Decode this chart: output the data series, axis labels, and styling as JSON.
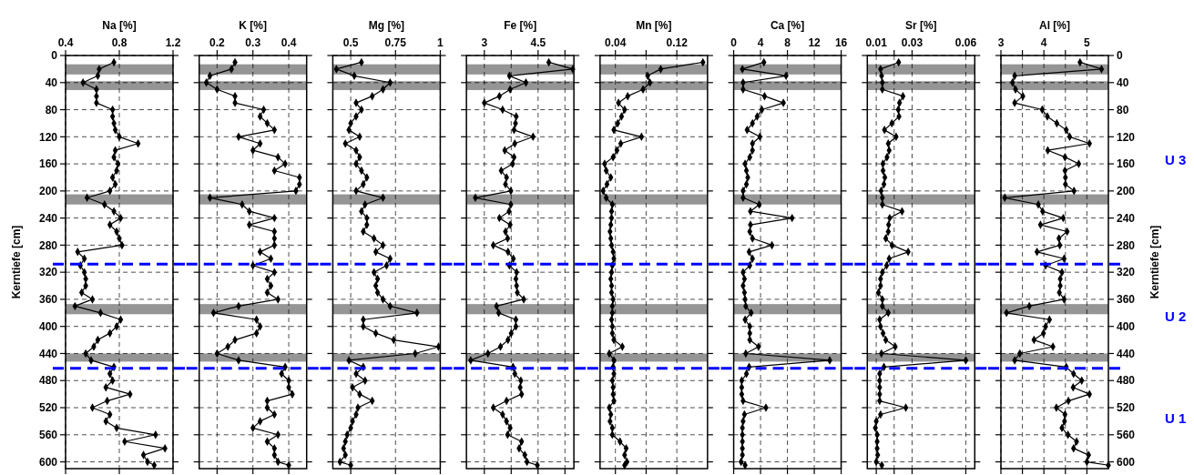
{
  "chart_data": [
    {
      "type": "line",
      "xlabel": "Na [%]",
      "ylabel": "Kerntiefe [cm]",
      "xlim": [
        0.4,
        1.2
      ],
      "xticks": [
        0.4,
        0.8,
        1.2
      ],
      "ylim": [
        610,
        0
      ],
      "yticks": [
        0,
        40,
        80,
        120,
        160,
        200,
        240,
        280,
        320,
        360,
        400,
        440,
        480,
        520,
        560,
        600
      ],
      "grid": true,
      "marker": "diamond",
      "bands": [
        {
          "axis": "y",
          "from": 13,
          "to": 28,
          "color": "#8a8a8a"
        },
        {
          "axis": "y",
          "from": 38,
          "to": 51,
          "color": "#8a8a8a"
        },
        {
          "axis": "y",
          "from": 205,
          "to": 220,
          "color": "#8a8a8a"
        },
        {
          "axis": "y",
          "from": 367,
          "to": 382,
          "color": "#8a8a8a"
        },
        {
          "axis": "y",
          "from": 440,
          "to": 452,
          "color": "#8a8a8a"
        }
      ],
      "ref_lines": [
        {
          "axis": "y",
          "value": 308,
          "color": "#0000ff",
          "line_style": "dashed"
        },
        {
          "axis": "y",
          "value": 462,
          "color": "#0000ff",
          "line_style": "dashed"
        }
      ],
      "series": [
        {
          "color": "#000000",
          "x": [
            0.76,
            0.65,
            0.64,
            0.53,
            0.63,
            0.63,
            0.63,
            0.75,
            0.75,
            0.76,
            0.77,
            0.8,
            0.94,
            0.77,
            0.76,
            0.79,
            0.78,
            0.75,
            0.77,
            0.73,
            0.56,
            0.69,
            0.76,
            0.81,
            0.73,
            0.78,
            0.8,
            0.82,
            0.49,
            0.54,
            0.51,
            0.54,
            0.55,
            0.55,
            0.52,
            0.6,
            0.47,
            0.66,
            0.81,
            0.78,
            0.73,
            0.64,
            0.61,
            0.55,
            0.59,
            0.76,
            0.73,
            0.75,
            0.7,
            0.88,
            0.71,
            0.6,
            0.73,
            0.7,
            0.78,
            1.07,
            0.84,
            1.14,
            0.98,
            1.01,
            1.06
          ],
          "values": [
            10,
            20,
            30,
            40,
            50,
            60,
            70,
            80,
            90,
            100,
            110,
            120,
            130,
            140,
            150,
            160,
            170,
            180,
            190,
            200,
            210,
            220,
            230,
            240,
            250,
            260,
            270,
            280,
            290,
            300,
            310,
            320,
            330,
            340,
            350,
            360,
            370,
            380,
            390,
            400,
            410,
            420,
            430,
            440,
            450,
            460,
            470,
            480,
            490,
            500,
            510,
            520,
            530,
            540,
            550,
            560,
            570,
            580,
            590,
            600,
            605
          ]
        }
      ]
    },
    {
      "type": "line",
      "xlabel": "K [%]",
      "xlim": [
        0.15,
        0.45
      ],
      "xticks": [
        0.2,
        0.3,
        0.4
      ],
      "ylim": [
        610,
        0
      ],
      "yticks": [
        0,
        40,
        80,
        120,
        160,
        200,
        240,
        280,
        320,
        360,
        400,
        440,
        480,
        520,
        560,
        600
      ],
      "grid": true,
      "marker": "diamond",
      "tick_labels": "x",
      "bands": [
        {
          "axis": "y",
          "from": 13,
          "to": 28,
          "color": "#8a8a8a"
        },
        {
          "axis": "y",
          "from": 38,
          "to": 51,
          "color": "#8a8a8a"
        },
        {
          "axis": "y",
          "from": 205,
          "to": 220,
          "color": "#8a8a8a"
        },
        {
          "axis": "y",
          "from": 367,
          "to": 382,
          "color": "#8a8a8a"
        },
        {
          "axis": "y",
          "from": 440,
          "to": 452,
          "color": "#8a8a8a"
        }
      ],
      "ref_lines": [
        {
          "axis": "y",
          "value": 308,
          "color": "#0000ff",
          "line_style": "dashed"
        },
        {
          "axis": "y",
          "value": 462,
          "color": "#0000ff",
          "line_style": "dashed"
        }
      ],
      "series": [
        {
          "color": "#000000",
          "x": [
            0.25,
            0.24,
            0.18,
            0.17,
            0.2,
            0.25,
            0.25,
            0.33,
            0.32,
            0.34,
            0.36,
            0.26,
            0.32,
            0.3,
            0.37,
            0.39,
            0.36,
            0.43,
            0.43,
            0.42,
            0.18,
            0.27,
            0.29,
            0.36,
            0.29,
            0.36,
            0.36,
            0.36,
            0.32,
            0.35,
            0.3,
            0.36,
            0.34,
            0.35,
            0.34,
            0.37,
            0.26,
            0.19,
            0.31,
            0.32,
            0.31,
            0.25,
            0.23,
            0.2,
            0.26,
            0.39,
            0.38,
            0.4,
            0.4,
            0.41,
            0.34,
            0.34,
            0.36,
            0.32,
            0.3,
            0.37,
            0.34,
            0.36,
            0.36,
            0.37,
            0.4
          ],
          "values": [
            10,
            20,
            30,
            40,
            50,
            60,
            70,
            80,
            90,
            100,
            110,
            120,
            130,
            140,
            150,
            160,
            170,
            180,
            190,
            200,
            210,
            220,
            230,
            240,
            250,
            260,
            270,
            280,
            290,
            300,
            310,
            320,
            330,
            340,
            350,
            360,
            370,
            380,
            390,
            400,
            410,
            420,
            430,
            440,
            450,
            460,
            470,
            480,
            490,
            500,
            510,
            520,
            530,
            540,
            550,
            560,
            570,
            580,
            590,
            600,
            605
          ]
        }
      ]
    },
    {
      "type": "line",
      "xlabel": "Mg [%]",
      "xlim": [
        0.4,
        1
      ],
      "xticks": [
        0.5,
        0.75,
        1
      ],
      "ylim": [
        610,
        0
      ],
      "yticks": [
        0,
        40,
        80,
        120,
        160,
        200,
        240,
        280,
        320,
        360,
        400,
        440,
        480,
        520,
        560,
        600
      ],
      "grid": true,
      "marker": "diamond",
      "tick_labels": "x",
      "bands": [
        {
          "axis": "y",
          "from": 13,
          "to": 28,
          "color": "#8a8a8a"
        },
        {
          "axis": "y",
          "from": 38,
          "to": 51,
          "color": "#8a8a8a"
        },
        {
          "axis": "y",
          "from": 205,
          "to": 220,
          "color": "#8a8a8a"
        },
        {
          "axis": "y",
          "from": 367,
          "to": 382,
          "color": "#8a8a8a"
        },
        {
          "axis": "y",
          "from": 440,
          "to": 452,
          "color": "#8a8a8a"
        }
      ],
      "ref_lines": [
        {
          "axis": "y",
          "value": 308,
          "color": "#0000ff",
          "line_style": "dashed"
        },
        {
          "axis": "y",
          "value": 462,
          "color": "#0000ff",
          "line_style": "dashed"
        }
      ],
      "series": [
        {
          "color": "#000000",
          "x": [
            0.56,
            0.42,
            0.52,
            0.72,
            0.68,
            0.62,
            0.53,
            0.56,
            0.53,
            0.5,
            0.49,
            0.55,
            0.47,
            0.53,
            0.55,
            0.53,
            0.56,
            0.59,
            0.57,
            0.53,
            0.68,
            0.58,
            0.56,
            0.59,
            0.59,
            0.57,
            0.63,
            0.68,
            0.64,
            0.72,
            0.7,
            0.63,
            0.65,
            0.64,
            0.65,
            0.68,
            0.72,
            0.87,
            0.57,
            0.57,
            0.64,
            0.74,
            0.99,
            0.86,
            0.49,
            0.57,
            0.53,
            0.58,
            0.51,
            0.55,
            0.62,
            0.54,
            0.53,
            0.51,
            0.5,
            0.48,
            0.47,
            0.46,
            0.47,
            0.44,
            0.5
          ],
          "values": [
            10,
            20,
            30,
            40,
            50,
            60,
            70,
            80,
            90,
            100,
            110,
            120,
            130,
            140,
            150,
            160,
            170,
            180,
            190,
            200,
            210,
            220,
            230,
            240,
            250,
            260,
            270,
            280,
            290,
            300,
            310,
            320,
            330,
            340,
            350,
            360,
            370,
            380,
            390,
            400,
            410,
            420,
            430,
            440,
            450,
            460,
            470,
            480,
            490,
            500,
            510,
            520,
            530,
            540,
            550,
            560,
            570,
            580,
            590,
            600,
            605
          ]
        }
      ]
    },
    {
      "type": "line",
      "xlabel": "Fe [%]",
      "xlim": [
        2.5,
        5.5
      ],
      "xticks": [
        3,
        {
          "value": 3.75,
          "label": null
        },
        4.5,
        {
          "value": 5.25,
          "label": null
        }
      ],
      "ylim": [
        610,
        0
      ],
      "yticks": [
        0,
        40,
        80,
        120,
        160,
        200,
        240,
        280,
        320,
        360,
        400,
        440,
        480,
        520,
        560,
        600
      ],
      "grid": true,
      "marker": "diamond",
      "tick_labels": "x",
      "bands": [
        {
          "axis": "y",
          "from": 13,
          "to": 28,
          "color": "#8a8a8a"
        },
        {
          "axis": "y",
          "from": 38,
          "to": 51,
          "color": "#8a8a8a"
        },
        {
          "axis": "y",
          "from": 205,
          "to": 220,
          "color": "#8a8a8a"
        },
        {
          "axis": "y",
          "from": 367,
          "to": 382,
          "color": "#8a8a8a"
        },
        {
          "axis": "y",
          "from": 440,
          "to": 452,
          "color": "#8a8a8a"
        }
      ],
      "ref_lines": [
        {
          "axis": "y",
          "value": 308,
          "color": "#0000ff",
          "line_style": "dashed"
        },
        {
          "axis": "y",
          "value": 462,
          "color": "#0000ff",
          "line_style": "dashed"
        }
      ],
      "series": [
        {
          "color": "#000000",
          "x": [
            4.8,
            5.47,
            3.7,
            4.16,
            3.72,
            3.42,
            3.0,
            3.51,
            3.89,
            3.87,
            3.83,
            4.36,
            3.85,
            3.57,
            3.83,
            3.79,
            3.47,
            3.62,
            3.59,
            3.74,
            2.75,
            3.74,
            3.69,
            3.42,
            3.72,
            3.59,
            3.65,
            3.25,
            3.66,
            3.81,
            3.7,
            3.9,
            3.88,
            3.9,
            3.92,
            4.1,
            3.34,
            3.4,
            3.88,
            3.88,
            3.75,
            3.66,
            3.45,
            3.1,
            2.62,
            3.8,
            3.85,
            4.02,
            4.0,
            4.04,
            3.62,
            3.25,
            3.51,
            3.62,
            3.72,
            3.65,
            4.04,
            3.97,
            4.13,
            4.19,
            4.48
          ],
          "values": [
            10,
            20,
            30,
            40,
            50,
            60,
            70,
            80,
            90,
            100,
            110,
            120,
            130,
            140,
            150,
            160,
            170,
            180,
            190,
            200,
            210,
            220,
            230,
            240,
            250,
            260,
            270,
            280,
            290,
            300,
            310,
            320,
            330,
            340,
            350,
            360,
            370,
            380,
            390,
            400,
            410,
            420,
            430,
            440,
            450,
            460,
            470,
            480,
            490,
            500,
            510,
            520,
            530,
            540,
            550,
            560,
            570,
            580,
            590,
            600,
            605
          ]
        }
      ]
    },
    {
      "type": "line",
      "xlabel": "Mn [%]",
      "xlim": [
        0.02,
        0.16
      ],
      "xticks": [
        0.04,
        {
          "value": 0.08,
          "label": null
        },
        0.12
      ],
      "ylim": [
        610,
        0
      ],
      "yticks": [
        0,
        40,
        80,
        120,
        160,
        200,
        240,
        280,
        320,
        360,
        400,
        440,
        480,
        520,
        560,
        600
      ],
      "grid": true,
      "marker": "diamond",
      "tick_labels": "x",
      "bands": [
        {
          "axis": "y",
          "from": 13,
          "to": 28,
          "color": "#8a8a8a"
        },
        {
          "axis": "y",
          "from": 38,
          "to": 51,
          "color": "#8a8a8a"
        },
        {
          "axis": "y",
          "from": 205,
          "to": 220,
          "color": "#8a8a8a"
        },
        {
          "axis": "y",
          "from": 367,
          "to": 382,
          "color": "#8a8a8a"
        },
        {
          "axis": "y",
          "from": 440,
          "to": 452,
          "color": "#8a8a8a"
        }
      ],
      "ref_lines": [
        {
          "axis": "y",
          "value": 308,
          "color": "#0000ff",
          "line_style": "dashed"
        },
        {
          "axis": "y",
          "value": 462,
          "color": "#0000ff",
          "line_style": "dashed"
        }
      ],
      "series": [
        {
          "color": "#000000",
          "x": [
            0.154,
            0.099,
            0.082,
            0.085,
            0.076,
            0.056,
            0.044,
            0.052,
            0.048,
            0.043,
            0.038,
            0.074,
            0.047,
            0.042,
            0.037,
            0.026,
            0.028,
            0.034,
            0.029,
            0.024,
            0.028,
            0.036,
            0.035,
            0.035,
            0.034,
            0.033,
            0.034,
            0.035,
            0.037,
            0.038,
            0.036,
            0.035,
            0.034,
            0.035,
            0.035,
            0.037,
            0.036,
            0.036,
            0.035,
            0.036,
            0.036,
            0.038,
            0.049,
            0.032,
            0.038,
            0.037,
            0.038,
            0.036,
            0.037,
            0.037,
            0.038,
            0.032,
            0.034,
            0.033,
            0.036,
            0.036,
            0.046,
            0.054,
            0.052,
            0.055,
            0.052
          ],
          "values": [
            10,
            20,
            30,
            40,
            50,
            60,
            70,
            80,
            90,
            100,
            110,
            120,
            130,
            140,
            150,
            160,
            170,
            180,
            190,
            200,
            210,
            220,
            230,
            240,
            250,
            260,
            270,
            280,
            290,
            300,
            310,
            320,
            330,
            340,
            350,
            360,
            370,
            380,
            390,
            400,
            410,
            420,
            430,
            440,
            450,
            460,
            470,
            480,
            490,
            500,
            510,
            520,
            530,
            540,
            550,
            560,
            570,
            580,
            590,
            600,
            605
          ]
        }
      ]
    },
    {
      "type": "line",
      "xlabel": "Ca [%]",
      "xlim": [
        0,
        16
      ],
      "xticks": [
        0,
        4,
        8,
        12,
        16
      ],
      "ylim": [
        610,
        0
      ],
      "yticks": [
        0,
        40,
        80,
        120,
        160,
        200,
        240,
        280,
        320,
        360,
        400,
        440,
        480,
        520,
        560,
        600
      ],
      "grid": true,
      "marker": "diamond",
      "tick_labels": "x",
      "bands": [
        {
          "axis": "y",
          "from": 13,
          "to": 28,
          "color": "#8a8a8a"
        },
        {
          "axis": "y",
          "from": 38,
          "to": 51,
          "color": "#8a8a8a"
        },
        {
          "axis": "y",
          "from": 205,
          "to": 220,
          "color": "#8a8a8a"
        },
        {
          "axis": "y",
          "from": 367,
          "to": 382,
          "color": "#8a8a8a"
        },
        {
          "axis": "y",
          "from": 440,
          "to": 452,
          "color": "#8a8a8a"
        }
      ],
      "ref_lines": [
        {
          "axis": "y",
          "value": 308,
          "color": "#0000ff",
          "line_style": "dashed"
        },
        {
          "axis": "y",
          "value": 462,
          "color": "#0000ff",
          "line_style": "dashed"
        }
      ],
      "series": [
        {
          "color": "#000000",
          "x": [
            4.5,
            1.3,
            7.8,
            1.4,
            1.4,
            4.6,
            7.4,
            4.2,
            3.5,
            2.8,
            2.0,
            3.9,
            2.8,
            2.8,
            2.4,
            1.7,
            1.9,
            2.1,
            1.9,
            1.4,
            1.4,
            3.8,
            2.5,
            8.7,
            2.5,
            2.4,
            2.8,
            5.7,
            2.3,
            2.8,
            2.4,
            1.4,
            1.6,
            1.4,
            1.6,
            1.7,
            1.8,
            2.6,
            1.7,
            2.4,
            2.4,
            2.4,
            3.7,
            1.8,
            14.3,
            2.3,
            1.9,
            1.2,
            1.2,
            1.2,
            1.4,
            4.8,
            1.6,
            1.4,
            1.3,
            1.3,
            1.3,
            1.3,
            1.3,
            1.1,
            1.7
          ],
          "values": [
            10,
            20,
            30,
            40,
            50,
            60,
            70,
            80,
            90,
            100,
            110,
            120,
            130,
            140,
            150,
            160,
            170,
            180,
            190,
            200,
            210,
            220,
            230,
            240,
            250,
            260,
            270,
            280,
            290,
            300,
            310,
            320,
            330,
            340,
            350,
            360,
            370,
            380,
            390,
            400,
            410,
            420,
            430,
            440,
            450,
            460,
            470,
            480,
            490,
            500,
            510,
            520,
            530,
            540,
            550,
            560,
            570,
            580,
            590,
            600,
            605
          ]
        }
      ]
    },
    {
      "type": "line",
      "xlabel": "Sr [%]",
      "xlim": [
        0.005,
        0.065
      ],
      "xticks": [
        0.01,
        {
          "value": 0.02,
          "label": null
        },
        0.03,
        0.06
      ],
      "ylim": [
        610,
        0
      ],
      "yticks": [
        0,
        40,
        80,
        120,
        160,
        200,
        240,
        280,
        320,
        360,
        400,
        440,
        480,
        520,
        560,
        600
      ],
      "grid": true,
      "marker": "diamond",
      "tick_labels": "x",
      "bands": [
        {
          "axis": "y",
          "from": 13,
          "to": 28,
          "color": "#8a8a8a"
        },
        {
          "axis": "y",
          "from": 38,
          "to": 51,
          "color": "#8a8a8a"
        },
        {
          "axis": "y",
          "from": 205,
          "to": 220,
          "color": "#8a8a8a"
        },
        {
          "axis": "y",
          "from": 367,
          "to": 382,
          "color": "#8a8a8a"
        },
        {
          "axis": "y",
          "from": 440,
          "to": 452,
          "color": "#8a8a8a"
        }
      ],
      "ref_lines": [
        {
          "axis": "y",
          "value": 308,
          "color": "#0000ff",
          "line_style": "dashed"
        },
        {
          "axis": "y",
          "value": 462,
          "color": "#0000ff",
          "line_style": "dashed"
        }
      ],
      "series": [
        {
          "color": "#000000",
          "x": [
            0.0225,
            0.0124,
            0.013,
            0.0134,
            0.0134,
            0.0249,
            0.023,
            0.0223,
            0.0227,
            0.0187,
            0.0146,
            0.0211,
            0.0167,
            0.0172,
            0.016,
            0.0137,
            0.0138,
            0.0148,
            0.0143,
            0.0127,
            0.0134,
            0.0134,
            0.0244,
            0.0175,
            0.0169,
            0.0167,
            0.0153,
            0.0188,
            0.0278,
            0.0172,
            0.0158,
            0.0134,
            0.0124,
            0.0124,
            0.0112,
            0.0134,
            0.0134,
            0.0167,
            0.0119,
            0.0124,
            0.0138,
            0.0153,
            0.0206,
            0.0129,
            0.06,
            0.0143,
            0.0119,
            0.0119,
            0.0119,
            0.0119,
            0.0119,
            0.0265,
            0.0124,
            0.01,
            0.0095,
            0.0105,
            0.0105,
            0.0105,
            0.0108,
            0.01,
            0.0131
          ],
          "values": [
            10,
            20,
            30,
            40,
            50,
            60,
            70,
            80,
            90,
            100,
            110,
            120,
            130,
            140,
            150,
            160,
            170,
            180,
            190,
            200,
            210,
            220,
            230,
            240,
            250,
            260,
            270,
            280,
            290,
            300,
            310,
            320,
            330,
            340,
            350,
            360,
            370,
            380,
            390,
            400,
            410,
            420,
            430,
            440,
            450,
            460,
            470,
            480,
            490,
            500,
            510,
            520,
            530,
            540,
            550,
            560,
            570,
            580,
            590,
            600,
            605
          ]
        }
      ]
    },
    {
      "type": "line",
      "xlabel": "Al [%]",
      "ylabel": "Kerntiefe [cm]",
      "xlim": [
        3,
        5.5
      ],
      "xticks": [
        3,
        {
          "value": 3.5,
          "label": null
        },
        4,
        {
          "value": 4.5,
          "label": null
        },
        5
      ],
      "ylim": [
        610,
        0
      ],
      "yticks": [
        0,
        40,
        80,
        120,
        160,
        200,
        240,
        280,
        320,
        360,
        400,
        440,
        480,
        520,
        560,
        600
      ],
      "grid": true,
      "marker": "diamond",
      "bands": [
        {
          "axis": "y",
          "from": 13,
          "to": 28,
          "color": "#8a8a8a"
        },
        {
          "axis": "y",
          "from": 38,
          "to": 51,
          "color": "#8a8a8a"
        },
        {
          "axis": "y",
          "from": 205,
          "to": 220,
          "color": "#8a8a8a"
        },
        {
          "axis": "y",
          "from": 367,
          "to": 382,
          "color": "#8a8a8a"
        },
        {
          "axis": "y",
          "from": 440,
          "to": 452,
          "color": "#8a8a8a"
        }
      ],
      "ref_lines": [
        {
          "axis": "y",
          "value": 308,
          "color": "#0000ff",
          "line_style": "dashed"
        },
        {
          "axis": "y",
          "value": 462,
          "color": "#0000ff",
          "line_style": "dashed"
        }
      ],
      "annotations": [
        "U 3",
        "U 2",
        "U 1"
      ],
      "series": [
        {
          "color": "#000000",
          "x": [
            4.84,
            5.34,
            3.32,
            3.27,
            3.34,
            3.51,
            3.32,
            3.96,
            4.08,
            4.3,
            4.52,
            4.6,
            5.06,
            4.09,
            4.49,
            4.81,
            4.49,
            4.5,
            4.5,
            4.7,
            3.09,
            3.87,
            3.97,
            4.45,
            3.92,
            4.54,
            4.35,
            4.37,
            3.84,
            4.47,
            4.04,
            4.42,
            4.38,
            4.38,
            4.36,
            4.47,
            3.66,
            3.13,
            4.13,
            4.04,
            3.99,
            3.77,
            4.21,
            3.44,
            3.32,
            4.52,
            4.69,
            4.88,
            4.68,
            5.06,
            4.57,
            4.29,
            4.49,
            4.48,
            4.42,
            4.56,
            4.76,
            4.69,
            5.04,
            5.0,
            5.5
          ],
          "values": [
            10,
            20,
            30,
            40,
            50,
            60,
            70,
            80,
            90,
            100,
            110,
            120,
            130,
            140,
            150,
            160,
            170,
            180,
            190,
            200,
            210,
            220,
            230,
            240,
            250,
            260,
            270,
            280,
            290,
            300,
            310,
            320,
            330,
            340,
            350,
            360,
            370,
            380,
            390,
            400,
            410,
            420,
            430,
            440,
            450,
            460,
            470,
            480,
            490,
            500,
            510,
            520,
            530,
            540,
            550,
            560,
            570,
            580,
            590,
            600,
            605
          ]
        }
      ]
    }
  ]
}
